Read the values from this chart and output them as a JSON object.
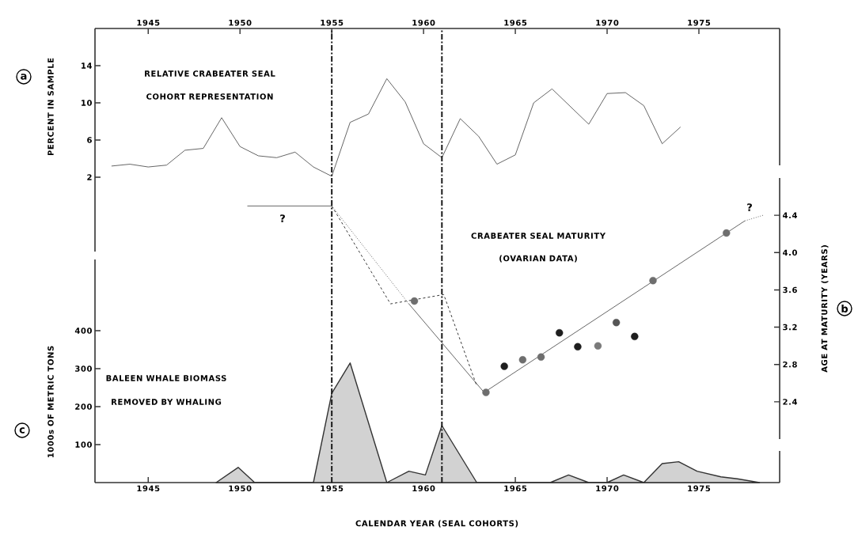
{
  "chart_data": [
    {
      "type": "line",
      "ylabel": "PERCENT IN SAMPLE",
      "xlim": [
        1942.1,
        1979.4
      ],
      "xticks": [
        1945,
        1950,
        1955,
        1960,
        1965,
        1970,
        1975
      ],
      "ylim": [
        -6,
        18
      ],
      "yticks": [
        2,
        6,
        10,
        14
      ],
      "annotations": [
        "a",
        "RELATIVE CRABEATER SEAL",
        "COHORT REPRESENTATION"
      ],
      "series": [
        {
          "color": "#555555",
          "line_style": "solid",
          "x": [
            1943,
            1944,
            1945,
            1946,
            1947,
            1948,
            1949,
            1950,
            1951,
            1952,
            1953,
            1954,
            1955,
            1956,
            1957,
            1958,
            1959,
            1960,
            1961,
            1962,
            1963,
            1964,
            1965,
            1966,
            1967,
            1969,
            1970,
            1971,
            1972,
            1973,
            1974
          ],
          "values": [
            3.2,
            3.4,
            3.1,
            3.3,
            4.9,
            5.1,
            8.4,
            5.3,
            4.3,
            4.1,
            4.7,
            3.1,
            2.1,
            7.9,
            8.8,
            12.6,
            10.1,
            5.6,
            4.1,
            8.3,
            6.4,
            3.4,
            4.4,
            10.0,
            11.5,
            7.7,
            11.0,
            11.1,
            9.7,
            5.6,
            7.4
          ]
        }
      ]
    },
    {
      "type": "area",
      "xlabel": "CALENDAR YEAR (SEAL COHORTS)",
      "ylabel": "1000s OF METRIC TONS",
      "y2label": "AGE AT MATURITY (YEARS)",
      "xlim": [
        1942.1,
        1979.4
      ],
      "xticks": [
        1945,
        1950,
        1955,
        1960,
        1965,
        1970,
        1975
      ],
      "ylim": [
        0,
        800
      ],
      "yticks": [
        100,
        200,
        300,
        400
      ],
      "y2lim": [
        2.0,
        4.8
      ],
      "y2ticks": [
        2.4,
        2.8,
        3.2,
        3.6,
        {
          "value": 4,
          "label": "4.0"
        },
        4.4
      ],
      "ref_lines": [
        {
          "axis": "x",
          "value": 1955,
          "line_style": "dashdot",
          "color": "#1a1a1a"
        },
        {
          "axis": "x",
          "value": 1961,
          "line_style": "dashdot",
          "color": "#1a1a1a"
        }
      ],
      "annotations": [
        "c",
        "BALEEN WHALE BIOMASS",
        "REMOVED BY WHALING",
        "b",
        "CRABEATER SEAL MATURITY",
        "(OVARIAN DATA)",
        "?",
        "?"
      ],
      "series": [
        {
          "color": "#333333",
          "x": [
            1948.7,
            1949.9,
            1950.8,
            1954.0,
            1955,
            1956.0,
            1958.0,
            1959.2,
            1960.1,
            1961,
            1962.9,
            1966.9,
            1967.9,
            1969.0,
            1970.0,
            1970.9,
            1972.0,
            1973.0,
            1973.9,
            1974.9,
            1976.2,
            1977.1,
            1978.3
          ],
          "values": [
            0,
            40,
            0,
            0,
            235,
            315,
            0,
            30,
            20,
            150,
            0,
            0,
            20,
            0,
            0,
            20,
            0,
            50,
            55,
            30,
            15,
            10,
            0
          ]
        },
        {
          "type": "line",
          "axis": "y2",
          "color": "#555555",
          "line_style": "solid",
          "x": [
            1950.4,
            1955,
            1957,
            1959.2,
            1963.3,
            1977.5
          ],
          "values": [
            4.5,
            4.5,
            null,
            3.45,
            2.5,
            4.34
          ]
        },
        {
          "type": "line",
          "axis": "y2",
          "color": "#444444",
          "line_style": "dotted",
          "x": [
            1955,
            1959.2,
            1968,
            1977.5,
            1978.5
          ],
          "values": [
            4.5,
            3.45,
            null,
            4.34,
            4.4
          ]
        },
        {
          "type": "line",
          "axis": "y2",
          "color": "#222222",
          "line_style": "dashed",
          "x": [
            1955,
            1958.2,
            1961.1,
            1962.9
          ],
          "values": [
            4.5,
            3.45,
            3.55,
            2.57
          ]
        },
        {
          "type": "scatter",
          "axis": "y2",
          "marker": "circle",
          "x": [
            1959.5,
            1963.4,
            1964.4,
            1965.4,
            1966.4,
            1967.4,
            1968.4,
            1969.5,
            1970.5,
            1971.5,
            1972.5,
            1976.5
          ],
          "values": [
            3.48,
            2.5,
            2.78,
            2.85,
            2.88,
            3.14,
            2.99,
            3.0,
            3.25,
            3.1,
            3.7,
            4.21
          ],
          "colors": [
            "#6e6e6e",
            "#6e6e6e",
            "#1e1e1e",
            "#6e6e6e",
            "#6e6e6e",
            "#1e1e1e",
            "#1e1e1e",
            "#7a7a7a",
            "#555555",
            "#1e1e1e",
            "#6e6e6e",
            "#6e6e6e"
          ]
        }
      ]
    }
  ]
}
